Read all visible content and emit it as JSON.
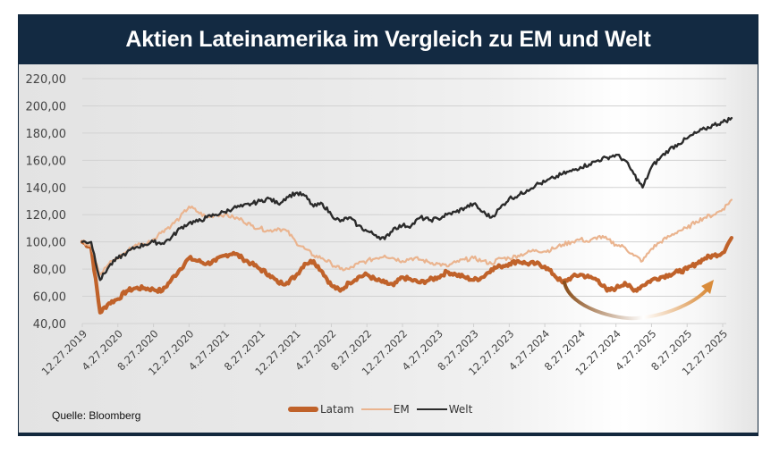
{
  "chart_data": {
    "type": "line",
    "title": "Aktien Lateinamerika im Vergleich zu EM und Welt",
    "xlabel": "",
    "ylabel": "",
    "ylim": [
      40,
      220
    ],
    "y_ticks": [
      "40,00",
      "60,00",
      "80,00",
      "100,00",
      "120,00",
      "140,00",
      "160,00",
      "180,00",
      "200,00",
      "220,00"
    ],
    "y_tick_values": [
      40,
      60,
      80,
      100,
      120,
      140,
      160,
      180,
      200,
      220
    ],
    "x_tick_labels": [
      "12.27.2019",
      "4.27.2020",
      "8.27.2020",
      "12.27.2020",
      "4.27.2021",
      "8.27.2021",
      "12.27.2021",
      "4.27.2022",
      "8.27.2022",
      "12.27.2022",
      "4.27.2023",
      "8.27.2023",
      "12.27.2023",
      "4.27.2024",
      "8.27.2024",
      "12.27.2024",
      "4.27.2025",
      "8.27.2025",
      "12.27.2025"
    ],
    "x_unit": "months since 12.27.2019 (monthly samples)",
    "x_range_months": [
      0,
      73
    ],
    "grid": "horizontal",
    "legend_position": "bottom",
    "series": [
      {
        "name": "Latam",
        "color": "#c0622a",
        "values": [
          100,
          96,
          48,
          55,
          58,
          64,
          66,
          66,
          65,
          64,
          72,
          80,
          88,
          86,
          84,
          86,
          90,
          92,
          88,
          84,
          80,
          76,
          70,
          70,
          75,
          84,
          86,
          78,
          68,
          64,
          70,
          74,
          76,
          72,
          70,
          68,
          74,
          72,
          70,
          72,
          74,
          78,
          76,
          74,
          72,
          74,
          80,
          82,
          84,
          86,
          84,
          84,
          82,
          76,
          70,
          74,
          76,
          74,
          72,
          64,
          66,
          70,
          64,
          68,
          72,
          74,
          76,
          78,
          80,
          84,
          88,
          90,
          92,
          103
        ]
      },
      {
        "name": "EM",
        "color": "#eab48f",
        "values": [
          100,
          98,
          76,
          84,
          88,
          93,
          98,
          98,
          102,
          108,
          112,
          118,
          126,
          122,
          118,
          120,
          120,
          118,
          116,
          112,
          110,
          108,
          110,
          108,
          100,
          95,
          90,
          88,
          84,
          80,
          80,
          84,
          86,
          88,
          90,
          88,
          86,
          88,
          87,
          85,
          84,
          82,
          85,
          87,
          88,
          86,
          84,
          88,
          88,
          90,
          92,
          94,
          93,
          95,
          98,
          100,
          102,
          100,
          104,
          102,
          98,
          96,
          90,
          86,
          95,
          100,
          104,
          108,
          110,
          115,
          118,
          120,
          124,
          131
        ]
      },
      {
        "name": "Welt",
        "color": "#2b2b2b",
        "values": [
          100,
          100,
          72,
          82,
          88,
          92,
          96,
          98,
          100,
          99,
          103,
          110,
          114,
          115,
          118,
          120,
          122,
          125,
          126,
          128,
          130,
          132,
          128,
          133,
          136,
          134,
          126,
          128,
          120,
          115,
          118,
          112,
          108,
          105,
          102,
          110,
          112,
          112,
          118,
          116,
          117,
          120,
          122,
          125,
          128,
          122,
          118,
          125,
          132,
          134,
          138,
          142,
          144,
          147,
          150,
          152,
          155,
          157,
          160,
          162,
          164,
          160,
          150,
          140,
          155,
          162,
          168,
          172,
          176,
          180,
          183,
          186,
          188,
          191
        ]
      }
    ],
    "annotations": [
      {
        "type": "curved-arrow",
        "description": "U-shaped arrow indicating Latam recovery",
        "from_month": 54,
        "to_month": 71
      }
    ]
  },
  "source": "Quelle: Bloomberg",
  "legend": [
    {
      "label": "Latam",
      "color": "#c0622a"
    },
    {
      "label": "EM",
      "color": "#eab48f"
    },
    {
      "label": "Welt",
      "color": "#2b2b2b"
    }
  ]
}
